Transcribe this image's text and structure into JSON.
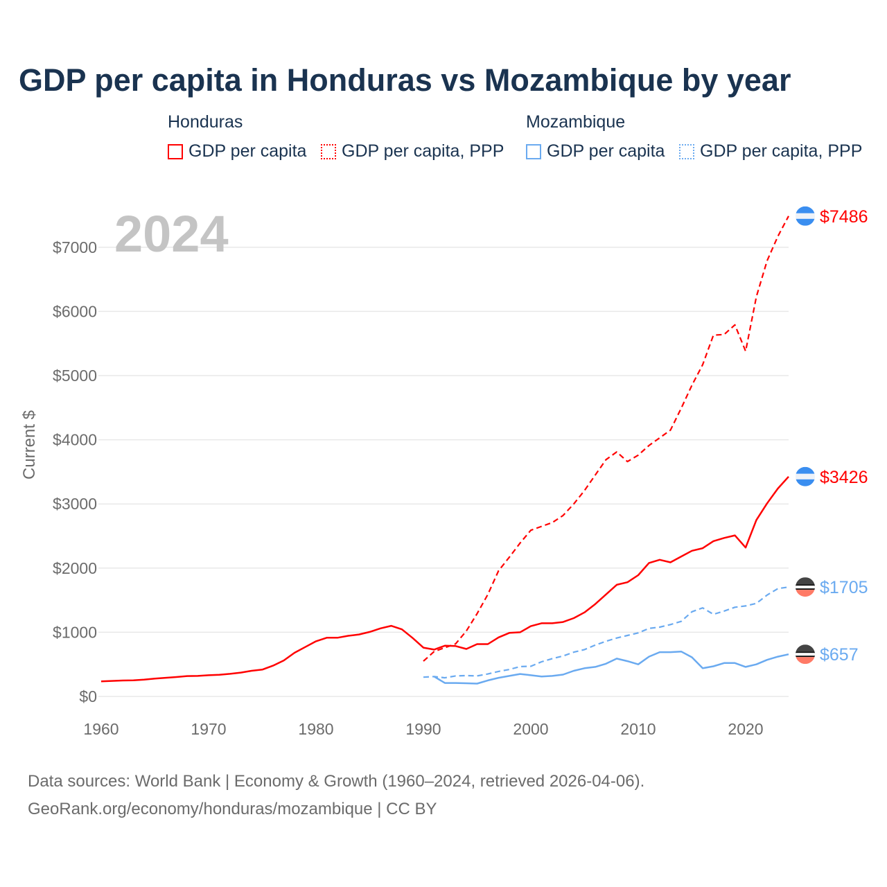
{
  "chart_data": {
    "type": "line",
    "title": "GDP per capita in Honduras vs Mozambique by year",
    "ylabel": "Current $",
    "xlabel": "",
    "year_overlay": "2024",
    "xlim": [
      1960,
      2024
    ],
    "ylim": [
      0,
      7500
    ],
    "x_ticks": [
      "1960",
      "1970",
      "1980",
      "1990",
      "2000",
      "2010",
      "2020"
    ],
    "y_ticks": [
      "$0",
      "$1000",
      "$2000",
      "$3000",
      "$4000",
      "$5000",
      "$6000",
      "$7000"
    ],
    "y_tick_values": [
      0,
      1000,
      2000,
      3000,
      4000,
      5000,
      6000,
      7000
    ],
    "grid": true,
    "legend": {
      "placement": "top",
      "groups": [
        {
          "country": "Honduras",
          "items": [
            "GDP per capita",
            "GDP per capita, PPP"
          ]
        },
        {
          "country": "Mozambique",
          "items": [
            "GDP per capita",
            "GDP per capita, PPP"
          ]
        }
      ]
    },
    "series": [
      {
        "name": "Honduras GDP per capita",
        "color": "#ff0000",
        "dash": "solid",
        "flag": "honduras",
        "end_label": "$3426",
        "start_year": 1960,
        "values": [
          235,
          242,
          248,
          252,
          262,
          278,
          290,
          302,
          318,
          320,
          330,
          338,
          352,
          372,
          400,
          418,
          480,
          560,
          680,
          770,
          860,
          915,
          915,
          945,
          965,
          1005,
          1060,
          1100,
          1045,
          910,
          760,
          730,
          790,
          785,
          740,
          815,
          815,
          920,
          990,
          1000,
          1095,
          1140,
          1140,
          1160,
          1220,
          1310,
          1440,
          1590,
          1740,
          1780,
          1890,
          2080,
          2130,
          2090,
          2180,
          2270,
          2310,
          2420,
          2470,
          2510,
          2320,
          2750,
          3010,
          3240,
          3426
        ]
      },
      {
        "name": "Honduras GDP per capita, PPP",
        "color": "#ff0000",
        "dash": "dashed",
        "flag": "honduras",
        "end_label": "$7486",
        "start_year": 1990,
        "values": [
          550,
          700,
          760,
          820,
          1020,
          1290,
          1590,
          1960,
          2170,
          2390,
          2590,
          2650,
          2710,
          2820,
          3000,
          3210,
          3450,
          3690,
          3810,
          3660,
          3760,
          3910,
          4030,
          4150,
          4490,
          4850,
          5170,
          5630,
          5640,
          5790,
          5380,
          6230,
          6790,
          7170,
          7486
        ]
      },
      {
        "name": "Mozambique GDP per capita",
        "color": "#6aaaf0",
        "dash": "solid",
        "flag": "mozambique",
        "end_label": "$657",
        "start_year": 1991,
        "values": [
          310,
          210,
          210,
          205,
          200,
          250,
          290,
          320,
          350,
          330,
          310,
          320,
          340,
          400,
          440,
          460,
          510,
          590,
          550,
          500,
          620,
          690,
          690,
          700,
          610,
          440,
          470,
          520,
          520,
          460,
          500,
          570,
          620,
          657
        ]
      },
      {
        "name": "Mozambique GDP per capita, PPP",
        "color": "#6aaaf0",
        "dash": "dashed",
        "flag": "mozambique",
        "end_label": "$1705",
        "start_year": 1990,
        "values": [
          300,
          310,
          290,
          320,
          325,
          320,
          350,
          390,
          420,
          465,
          470,
          540,
          590,
          630,
          690,
          730,
          800,
          860,
          910,
          950,
          990,
          1060,
          1080,
          1120,
          1170,
          1320,
          1380,
          1280,
          1330,
          1390,
          1410,
          1450,
          1580,
          1680,
          1705
        ]
      }
    ]
  },
  "footer": {
    "line1": "Data sources: World Bank | Economy & Growth (1960–2024, retrieved 2026-04-06).",
    "line2": "GeoRank.org/economy/honduras/mozambique | CC BY"
  }
}
